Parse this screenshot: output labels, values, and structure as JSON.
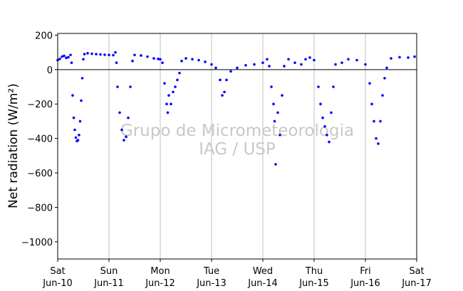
{
  "chart_data": {
    "type": "scatter",
    "title": "",
    "xlabel": "",
    "ylabel": "Net radiation (W/m²)",
    "watermark": [
      "Grupo de Micrometeorologia",
      "IAG / USP"
    ],
    "xlim": [
      "2017-06-10T00:00",
      "2017-06-17T00:00"
    ],
    "ylim": [
      -1100,
      210
    ],
    "yticks": [
      200,
      0,
      -200,
      -400,
      -600,
      -800,
      -1000
    ],
    "yticklabels": [
      "200",
      "0",
      "−200",
      "−400",
      "−600",
      "−800",
      "−1000"
    ],
    "xticks": [
      {
        "date": "2017-06-10",
        "day": "Sat",
        "label": "Jun-10"
      },
      {
        "date": "2017-06-11",
        "day": "Sun",
        "label": "Jun-11"
      },
      {
        "date": "2017-06-12",
        "day": "Mon",
        "label": "Jun-12"
      },
      {
        "date": "2017-06-13",
        "day": "Tue",
        "label": "Jun-13"
      },
      {
        "date": "2017-06-14",
        "day": "Wed",
        "label": "Jun-14"
      },
      {
        "date": "2017-06-15",
        "day": "Thu",
        "label": "Jun-15"
      },
      {
        "date": "2017-06-16",
        "day": "Fri",
        "label": "Jun-16"
      },
      {
        "date": "2017-06-17",
        "day": "Sat",
        "label": "Jun-17"
      }
    ],
    "grid": {
      "vertical": true,
      "horizontal": false
    },
    "zero_line": true,
    "series": [
      {
        "color": "#0000ff",
        "marker": "dot",
        "points": [
          [
            "2017-06-10T00:00",
            55
          ],
          [
            "2017-06-10T01:00",
            62
          ],
          [
            "2017-06-10T02:00",
            75
          ],
          [
            "2017-06-10T03:00",
            80
          ],
          [
            "2017-06-10T04:00",
            68
          ],
          [
            "2017-06-10T05:00",
            72
          ],
          [
            "2017-06-10T06:00",
            85
          ],
          [
            "2017-06-10T06:30",
            40
          ],
          [
            "2017-06-10T07:00",
            -150
          ],
          [
            "2017-06-10T07:30",
            -280
          ],
          [
            "2017-06-10T08:00",
            -350
          ],
          [
            "2017-06-10T08:30",
            -395
          ],
          [
            "2017-06-10T09:00",
            -415
          ],
          [
            "2017-06-10T09:30",
            -410
          ],
          [
            "2017-06-10T10:00",
            -380
          ],
          [
            "2017-06-10T10:30",
            -300
          ],
          [
            "2017-06-10T11:00",
            -180
          ],
          [
            "2017-06-10T11:30",
            -50
          ],
          [
            "2017-06-10T12:00",
            60
          ],
          [
            "2017-06-10T12:30",
            90
          ],
          [
            "2017-06-10T14:00",
            95
          ],
          [
            "2017-06-10T16:00",
            92
          ],
          [
            "2017-06-10T18:00",
            90
          ],
          [
            "2017-06-10T20:00",
            88
          ],
          [
            "2017-06-10T22:00",
            86
          ],
          [
            "2017-06-11T00:00",
            85
          ],
          [
            "2017-06-11T02:00",
            84
          ],
          [
            "2017-06-11T03:00",
            100
          ],
          [
            "2017-06-11T03:30",
            40
          ],
          [
            "2017-06-11T04:00",
            -100
          ],
          [
            "2017-06-11T05:00",
            -250
          ],
          [
            "2017-06-11T06:00",
            -350
          ],
          [
            "2017-06-11T07:00",
            -410
          ],
          [
            "2017-06-11T08:00",
            -390
          ],
          [
            "2017-06-11T09:00",
            -280
          ],
          [
            "2017-06-11T10:00",
            -100
          ],
          [
            "2017-06-11T11:00",
            50
          ],
          [
            "2017-06-11T12:00",
            85
          ],
          [
            "2017-06-11T15:00",
            82
          ],
          [
            "2017-06-11T18:00",
            75
          ],
          [
            "2017-06-11T21:00",
            65
          ],
          [
            "2017-06-11T23:00",
            62
          ],
          [
            "2017-06-12T00:00",
            60
          ],
          [
            "2017-06-12T01:00",
            40
          ],
          [
            "2017-06-12T02:00",
            -80
          ],
          [
            "2017-06-12T03:00",
            -200
          ],
          [
            "2017-06-12T03:30",
            -250
          ],
          [
            "2017-06-12T04:00",
            -150
          ],
          [
            "2017-06-12T05:00",
            -200
          ],
          [
            "2017-06-12T06:00",
            -130
          ],
          [
            "2017-06-12T07:00",
            -100
          ],
          [
            "2017-06-12T08:00",
            -60
          ],
          [
            "2017-06-12T09:00",
            -20
          ],
          [
            "2017-06-12T10:00",
            50
          ],
          [
            "2017-06-12T12:00",
            65
          ],
          [
            "2017-06-12T15:00",
            60
          ],
          [
            "2017-06-12T18:00",
            55
          ],
          [
            "2017-06-12T21:00",
            45
          ],
          [
            "2017-06-13T00:00",
            30
          ],
          [
            "2017-06-13T02:00",
            10
          ],
          [
            "2017-06-13T04:00",
            -60
          ],
          [
            "2017-06-13T05:00",
            -150
          ],
          [
            "2017-06-13T06:00",
            -130
          ],
          [
            "2017-06-13T07:00",
            -60
          ],
          [
            "2017-06-13T09:00",
            -10
          ],
          [
            "2017-06-13T12:00",
            10
          ],
          [
            "2017-06-13T16:00",
            25
          ],
          [
            "2017-06-13T20:00",
            30
          ],
          [
            "2017-06-14T00:00",
            40
          ],
          [
            "2017-06-14T02:00",
            60
          ],
          [
            "2017-06-14T03:00",
            20
          ],
          [
            "2017-06-14T04:00",
            -100
          ],
          [
            "2017-06-14T05:00",
            -200
          ],
          [
            "2017-06-14T05:30",
            -300
          ],
          [
            "2017-06-14T06:00",
            -550
          ],
          [
            "2017-06-14T07:00",
            -250
          ],
          [
            "2017-06-14T08:00",
            -380
          ],
          [
            "2017-06-14T09:00",
            -150
          ],
          [
            "2017-06-14T10:00",
            20
          ],
          [
            "2017-06-14T12:00",
            60
          ],
          [
            "2017-06-14T15:00",
            40
          ],
          [
            "2017-06-14T18:00",
            30
          ],
          [
            "2017-06-14T20:00",
            60
          ],
          [
            "2017-06-14T22:00",
            70
          ],
          [
            "2017-06-15T00:00",
            55
          ],
          [
            "2017-06-15T02:00",
            -100
          ],
          [
            "2017-06-15T03:00",
            -200
          ],
          [
            "2017-06-15T04:00",
            -280
          ],
          [
            "2017-06-15T05:00",
            -330
          ],
          [
            "2017-06-15T06:00",
            -380
          ],
          [
            "2017-06-15T07:00",
            -420
          ],
          [
            "2017-06-15T08:00",
            -250
          ],
          [
            "2017-06-15T09:00",
            -100
          ],
          [
            "2017-06-15T10:00",
            30
          ],
          [
            "2017-06-15T13:00",
            40
          ],
          [
            "2017-06-15T16:00",
            60
          ],
          [
            "2017-06-15T20:00",
            55
          ],
          [
            "2017-06-16T00:00",
            30
          ],
          [
            "2017-06-16T02:00",
            -80
          ],
          [
            "2017-06-16T03:00",
            -200
          ],
          [
            "2017-06-16T04:00",
            -300
          ],
          [
            "2017-06-16T05:00",
            -400
          ],
          [
            "2017-06-16T06:00",
            -430
          ],
          [
            "2017-06-16T07:00",
            -300
          ],
          [
            "2017-06-16T08:00",
            -150
          ],
          [
            "2017-06-16T09:00",
            -50
          ],
          [
            "2017-06-16T10:00",
            10
          ],
          [
            "2017-06-16T12:00",
            65
          ],
          [
            "2017-06-16T16:00",
            72
          ],
          [
            "2017-06-16T20:00",
            70
          ],
          [
            "2017-06-16T23:00",
            75
          ]
        ]
      }
    ]
  }
}
